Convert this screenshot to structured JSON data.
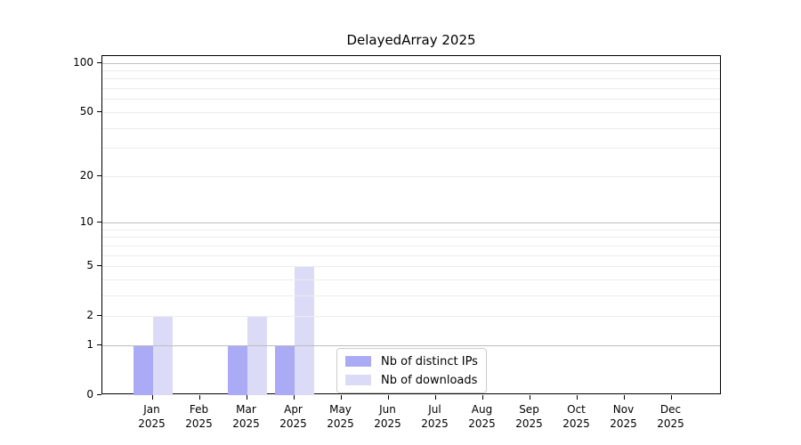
{
  "title": "DelayedArray 2025",
  "chart_data": {
    "type": "bar",
    "title": "DelayedArray 2025",
    "categories": [
      "Jan 2025",
      "Feb 2025",
      "Mar 2025",
      "Apr 2025",
      "May 2025",
      "Jun 2025",
      "Jul 2025",
      "Aug 2025",
      "Sep 2025",
      "Oct 2025",
      "Nov 2025",
      "Dec 2025"
    ],
    "series": [
      {
        "name": "Nb of distinct IPs",
        "color": "#aaaaf5",
        "values": [
          1,
          0,
          1,
          1,
          0,
          0,
          0,
          0,
          0,
          0,
          0,
          0
        ]
      },
      {
        "name": "Nb of downloads",
        "color": "#dbdbf8",
        "values": [
          2,
          0,
          2,
          5,
          0,
          0,
          0,
          0,
          0,
          0,
          0,
          0
        ]
      }
    ],
    "xlabel": "",
    "ylabel": "",
    "y_axis": {
      "scale": "log10(1+y)",
      "ticks": [
        0,
        1,
        2,
        5,
        10,
        20,
        50,
        100
      ],
      "max": 110,
      "gridlines_major": [
        1,
        10,
        100
      ],
      "gridlines_minor": [
        2,
        3,
        4,
        5,
        6,
        7,
        8,
        9,
        20,
        30,
        40,
        50,
        60,
        70,
        80,
        90
      ]
    },
    "legend": {
      "position": "inside-bottom-center",
      "entries": [
        "Nb of distinct IPs",
        "Nb of downloads"
      ]
    },
    "grid": "horizontal-on-top-of-bars"
  },
  "colors": {
    "background": "#ffffff",
    "spine": "#000000",
    "grid_minor": "#ececec",
    "grid_major": "#bdbdbd",
    "text": "#000000",
    "legend_border": "#cccccc"
  }
}
